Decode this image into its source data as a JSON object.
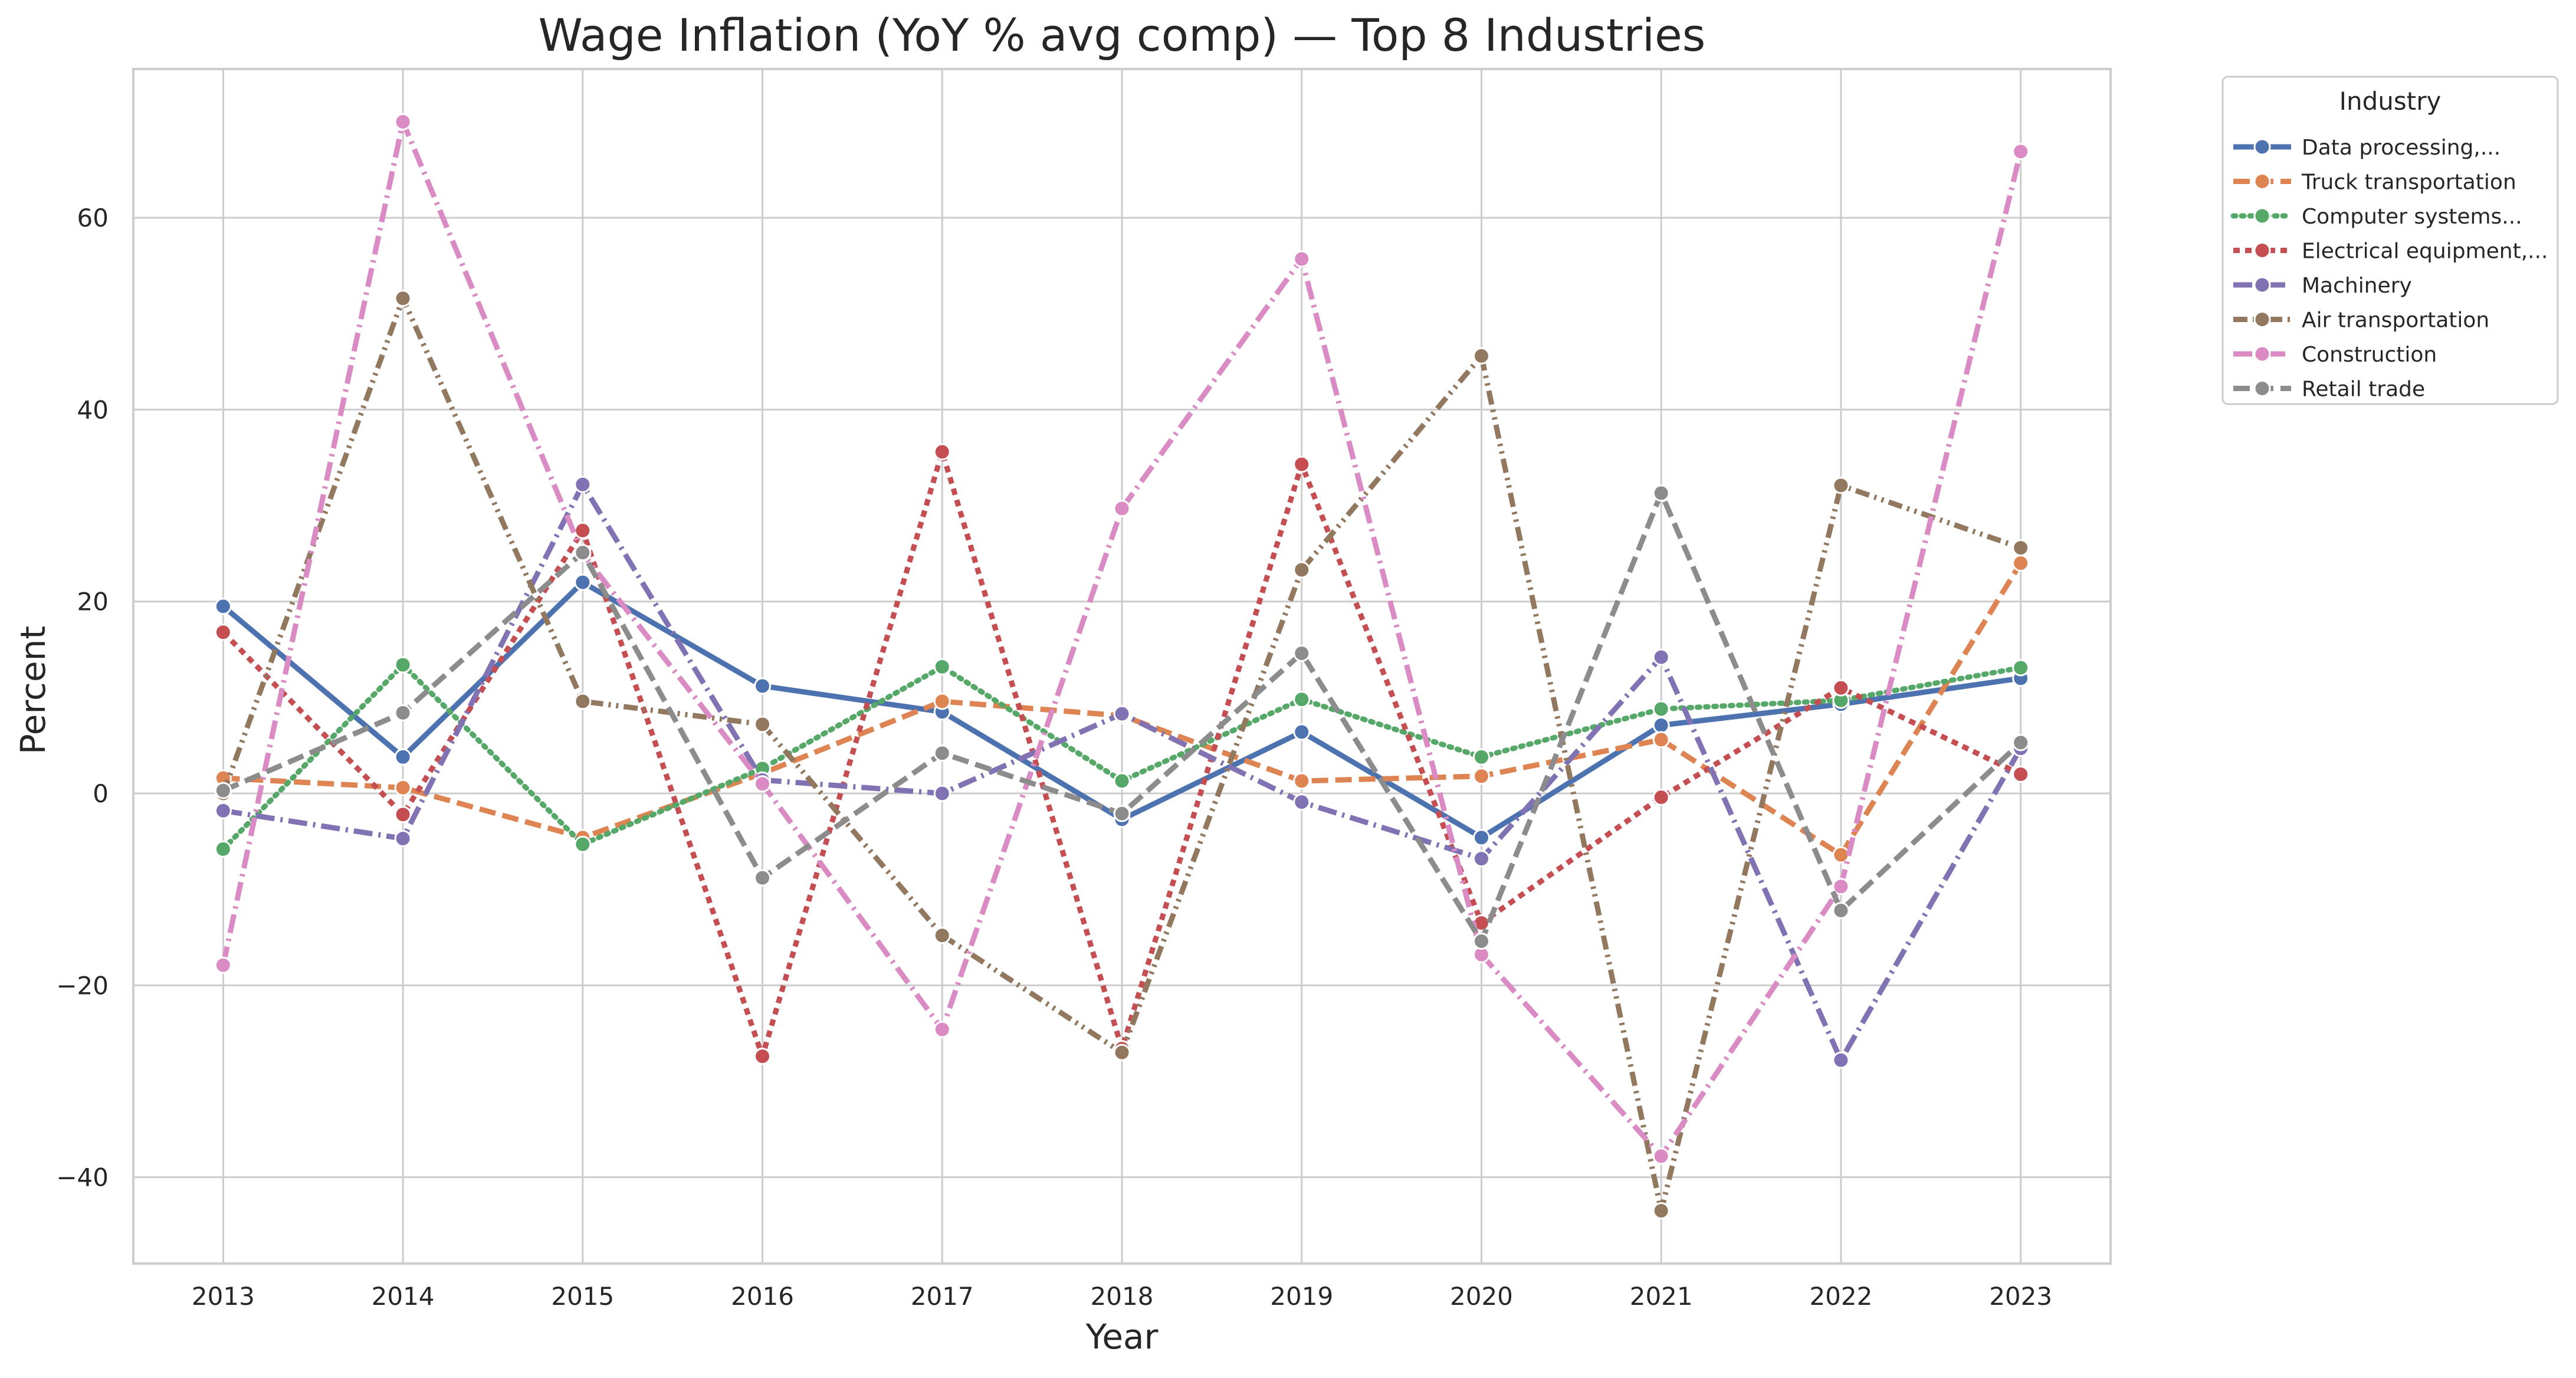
{
  "chart_data": {
    "type": "line",
    "title": "Wage Inflation (YoY % avg comp) — Top 8 Industries",
    "xlabel": "Year",
    "ylabel": "Percent",
    "x": [
      2013,
      2014,
      2015,
      2016,
      2017,
      2018,
      2019,
      2020,
      2021,
      2022,
      2023
    ],
    "xlim": [
      2012.5,
      2023.5
    ],
    "ylim": [
      -49,
      75.5
    ],
    "yticks": [
      -40,
      -20,
      0,
      20,
      40,
      60
    ],
    "ytick_labels": [
      "−40",
      "−20",
      "0",
      "20",
      "40",
      "60"
    ],
    "grid": true,
    "legend": {
      "title": "Industry",
      "placement": "outside-top-right"
    },
    "series": [
      {
        "name": "Data processing,...",
        "color": "#4c72b0",
        "dash": "solid",
        "values": [
          19.5,
          3.8,
          22.0,
          11.2,
          8.5,
          -2.7,
          6.4,
          -4.6,
          7.1,
          9.3,
          12.0
        ]
      },
      {
        "name": "Truck transportation",
        "color": "#dd8452",
        "dash": "dashed",
        "values": [
          1.6,
          0.6,
          -4.6,
          2.1,
          9.6,
          8.1,
          1.3,
          1.8,
          5.6,
          -6.4,
          24.0
        ]
      },
      {
        "name": "Computer systems...",
        "color": "#55a868",
        "dash": "dotted",
        "values": [
          -5.8,
          13.4,
          -5.3,
          2.6,
          13.2,
          1.3,
          9.8,
          3.8,
          8.8,
          9.7,
          13.1
        ]
      },
      {
        "name": "Electrical equipment,...",
        "color": "#c44e52",
        "dash": "densedash",
        "values": [
          16.8,
          -2.2,
          27.4,
          -27.4,
          35.6,
          -26.6,
          34.3,
          -13.5,
          -0.4,
          11.0,
          2.0
        ]
      },
      {
        "name": "Machinery",
        "color": "#8172b3",
        "dash": "dashdot",
        "values": [
          -1.8,
          -4.7,
          32.2,
          1.4,
          0.0,
          8.3,
          -0.9,
          -6.8,
          14.2,
          -27.8,
          4.7
        ]
      },
      {
        "name": "Air transportation",
        "color": "#937860",
        "dash": "dashdotdot",
        "values": [
          0.0,
          51.6,
          9.6,
          7.2,
          -14.8,
          -27.0,
          23.3,
          45.6,
          -43.5,
          32.1,
          25.6
        ]
      },
      {
        "name": "Construction",
        "color": "#da8bc3",
        "dash": "dashdot",
        "values": [
          -17.9,
          70.0,
          25.0,
          1.0,
          -24.6,
          29.7,
          55.7,
          -16.8,
          -37.8,
          -9.7,
          66.9
        ]
      },
      {
        "name": "Retail trade",
        "color": "#8c8c8c",
        "dash": "dashed",
        "values": [
          0.3,
          8.4,
          25.1,
          -8.8,
          4.2,
          -2.1,
          14.6,
          -15.4,
          31.3,
          -12.2,
          5.3
        ]
      }
    ]
  }
}
